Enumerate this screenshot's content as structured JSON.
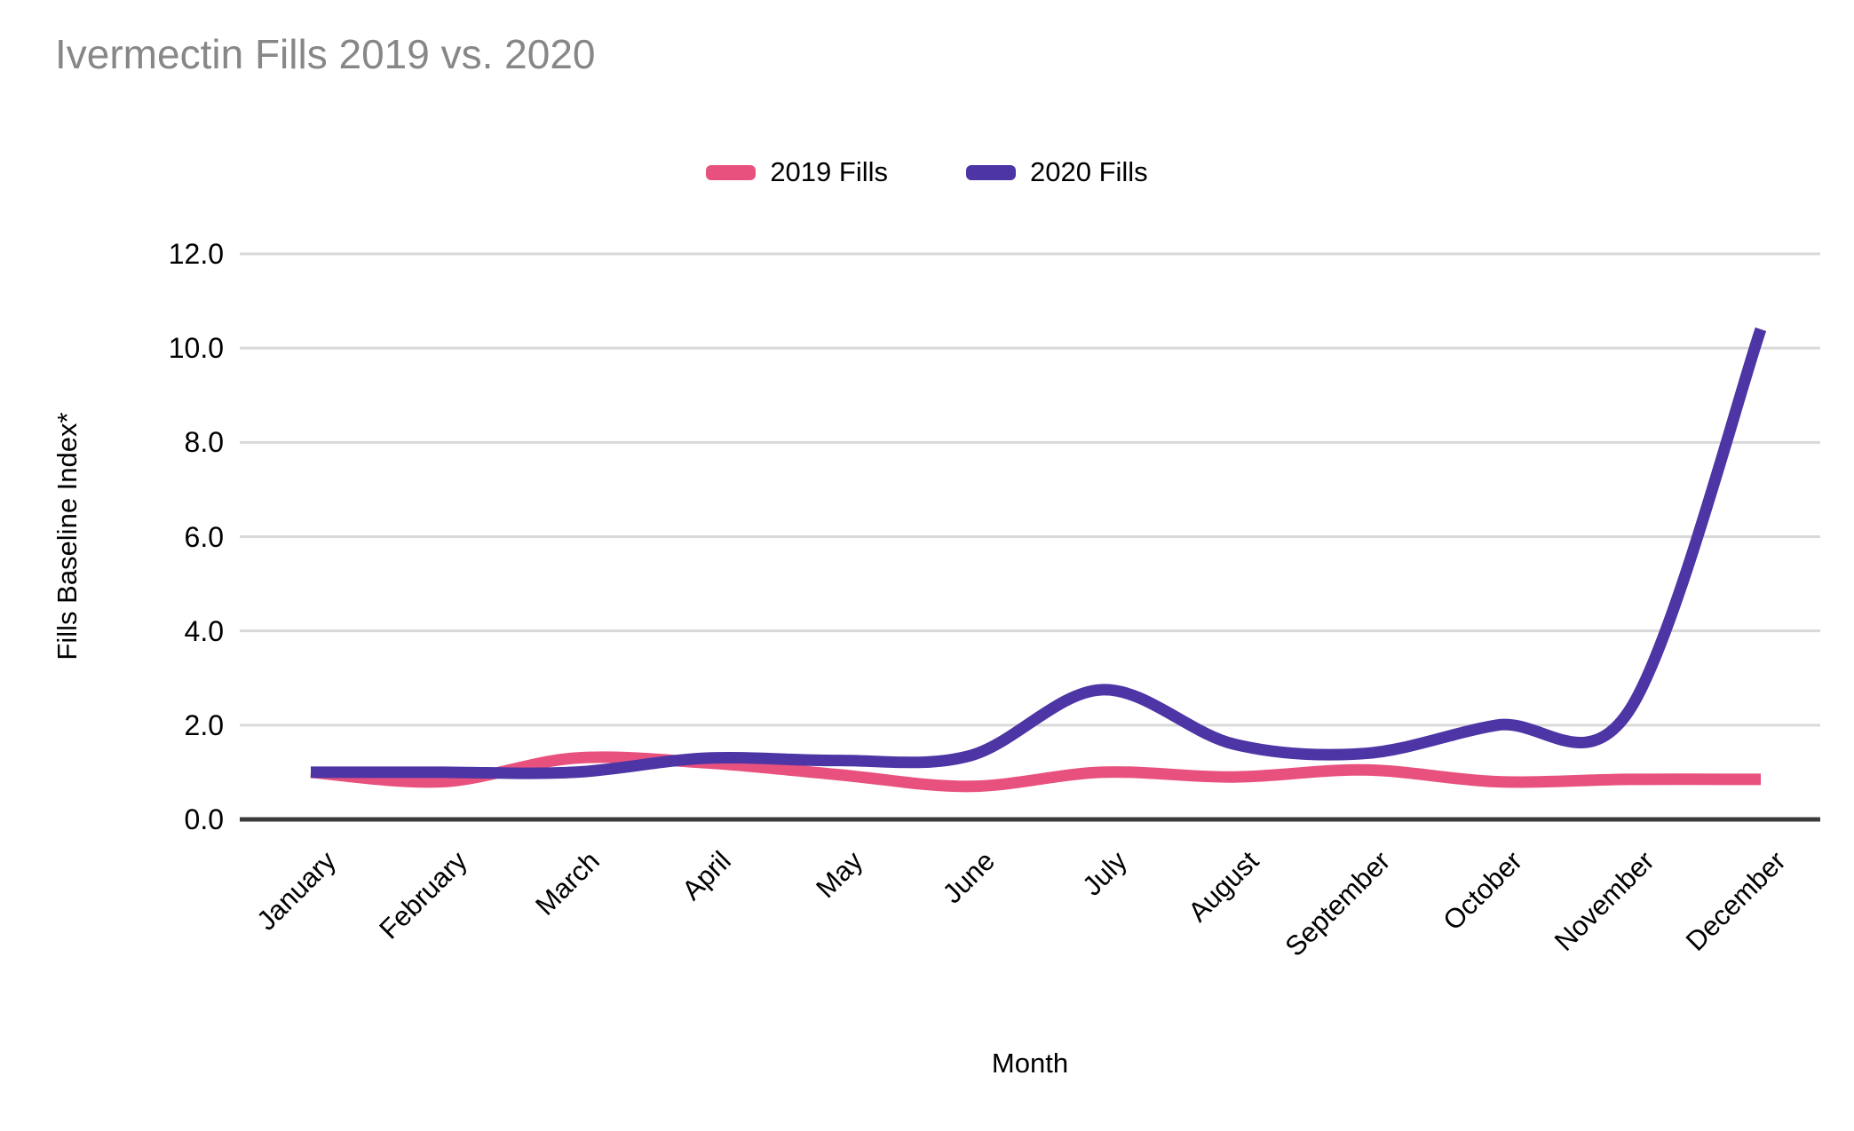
{
  "title": "Ivermectin Fills 2019 vs. 2020",
  "chart_data": {
    "type": "line",
    "title": "Ivermectin Fills 2019 vs. 2020",
    "xlabel": "Month",
    "ylabel": "Fills Baseline Index*",
    "categories": [
      "January",
      "February",
      "March",
      "April",
      "May",
      "June",
      "July",
      "August",
      "September",
      "October",
      "November",
      "December"
    ],
    "series": [
      {
        "name": "2019 Fills",
        "color": "#E8517E",
        "values": [
          1.0,
          0.8,
          1.3,
          1.2,
          0.95,
          0.7,
          1.0,
          0.9,
          1.05,
          0.8,
          0.85,
          0.85
        ]
      },
      {
        "name": "2020 Fills",
        "color": "#4D35A5",
        "values": [
          1.0,
          1.0,
          1.0,
          1.3,
          1.25,
          1.35,
          2.75,
          1.6,
          1.4,
          2.0,
          2.3,
          10.4
        ]
      }
    ],
    "ylim": [
      0,
      12
    ],
    "ytick_step": 2,
    "ytick_labels": [
      "0.0",
      "2.0",
      "4.0",
      "6.0",
      "8.0",
      "10.0",
      "12.0"
    ],
    "grid": true,
    "smooth": true,
    "legend_position": "top-center"
  },
  "colors": {
    "title_text": "#878787",
    "axis_text": "#000000",
    "gridline": "#d9d9d9",
    "axis_line": "#3c3c3c",
    "background": "#ffffff"
  }
}
